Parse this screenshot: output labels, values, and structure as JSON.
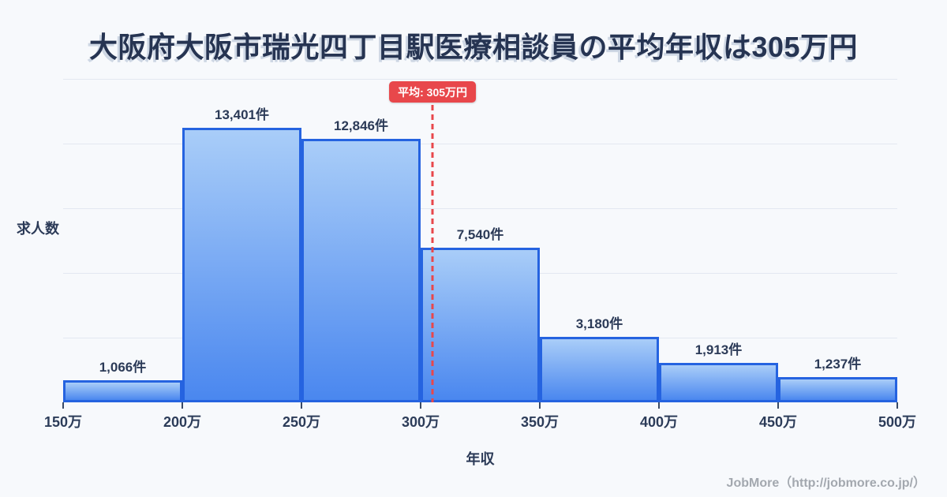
{
  "title": "大阪府大阪市瑞光四丁目駅医療相談員の平均年収は305万円",
  "footer_credit": "JobMore（http://jobmore.co.jp/）",
  "chart_data": {
    "type": "bar",
    "variant": "histogram",
    "title": "大阪府大阪市瑞光四丁目駅医療相談員の平均年収は305万円",
    "xlabel": "年収",
    "ylabel": "求人数",
    "x_unit": "万円",
    "y_unit": "件",
    "xlim": [
      150,
      500
    ],
    "ylim": [
      0,
      15800
    ],
    "grid": true,
    "bin_edges": [
      150,
      200,
      250,
      300,
      350,
      400,
      450,
      500
    ],
    "x_tick_labels": [
      "150万",
      "200万",
      "250万",
      "300万",
      "350万",
      "400万",
      "450万",
      "500万"
    ],
    "values": [
      1066,
      13401,
      12846,
      7540,
      3180,
      1913,
      1237
    ],
    "value_labels": [
      "1,066件",
      "13,401件",
      "12,846件",
      "7,540件",
      "3,180件",
      "1,913件",
      "1,237件"
    ],
    "average_line": {
      "label": "平均: 305万円",
      "value": 305
    },
    "colors": {
      "background": "#f7f9fc",
      "title_navy": "#263452",
      "bar_gradient_top": "#a9cdf8",
      "bar_gradient_bottom": "#4a87ef",
      "bar_border": "#2563e0",
      "average_red": "#e8474b",
      "gridline": "#e3e8f1",
      "footer_gray": "#a3a8af"
    }
  }
}
